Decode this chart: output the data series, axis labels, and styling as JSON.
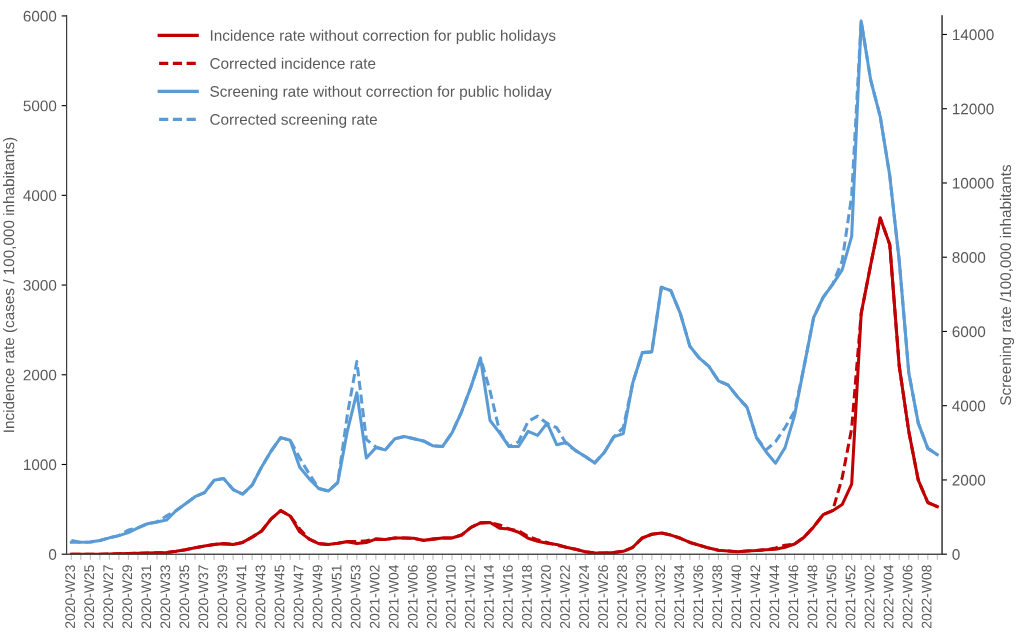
{
  "chart_data": {
    "type": "line",
    "categories": [
      "2020-W23",
      null,
      "2020-W25",
      null,
      "2020-W27",
      null,
      "2020-W29",
      null,
      "2020-W31",
      null,
      "2020-W33",
      null,
      "2020-W35",
      null,
      "2020-W37",
      null,
      "2020-W39",
      null,
      "2020-W41",
      null,
      "2020-W43",
      null,
      "2020-W45",
      null,
      "2020-W47",
      null,
      "2020-W49",
      null,
      "2020-W51",
      null,
      "2020-W53",
      null,
      "2021-W02",
      null,
      "2021-W04",
      null,
      "2021-W06",
      null,
      "2021-W08",
      null,
      "2021-W10",
      null,
      "2021-W12",
      null,
      "2021-W14",
      null,
      "2021-W16",
      null,
      "2021-W18",
      null,
      "2021-W20",
      null,
      "2021-W22",
      null,
      "2021-W24",
      null,
      "2021-W26",
      null,
      "2021-W28",
      null,
      "2021-W30",
      null,
      "2021-W32",
      null,
      "2021-W34",
      null,
      "2021-W36",
      null,
      "2021-W38",
      null,
      "2021-W40",
      null,
      "2021-W42",
      null,
      "2021-W44",
      null,
      "2021-W46",
      null,
      "2021-W48",
      null,
      "2021-W50",
      null,
      "2021-W52",
      null,
      "2022-W02",
      null,
      "2022-W04",
      null,
      "2022-W06",
      null,
      "2022-W08",
      null
    ],
    "ylabel": "Incidence rate (cases / 100,000 inhabitants)",
    "y2label": "Screening rate /100,000 inhabitants",
    "ylim": [
      0,
      6000
    ],
    "yticks": [
      0,
      1000,
      2000,
      3000,
      4000,
      5000,
      6000
    ],
    "y2lim": [
      0,
      14500
    ],
    "y2ticks": [
      0,
      2000,
      4000,
      6000,
      8000,
      10000,
      12000,
      14000
    ],
    "legend": "top left",
    "grid": false,
    "marker": "none",
    "series": [
      {
        "name": "Incidence rate without correction for public holidays",
        "color": "#c00000",
        "line_style": "solid",
        "values": [
          0,
          0,
          0,
          0,
          2,
          5,
          8,
          10,
          12,
          15,
          18,
          32,
          50,
          73,
          91,
          109,
          118,
          109,
          131,
          190,
          258,
          394,
          485,
          426,
          249,
          168,
          118,
          109,
          122,
          140,
          118,
          131,
          168,
          163,
          181,
          181,
          177,
          154,
          168,
          181,
          181,
          213,
          299,
          349,
          353,
          290,
          281,
          245,
          177,
          145,
          122,
          109,
          77,
          54,
          27,
          14,
          14,
          18,
          32,
          77,
          181,
          222,
          236,
          213,
          177,
          131,
          100,
          68,
          45,
          36,
          27,
          36,
          41,
          50,
          54,
          77,
          113,
          190,
          304,
          440,
          485,
          553,
          780,
          2683,
          3227,
          3748,
          3453,
          2094,
          1369,
          825,
          576,
          530
        ]
      },
      {
        "name": "Corrected incidence rate",
        "color": "#c00000",
        "line_style": "dashed",
        "values": [
          0,
          0,
          0,
          0,
          2,
          5,
          8,
          10,
          12,
          15,
          18,
          32,
          50,
          73,
          91,
          109,
          118,
          109,
          131,
          190,
          258,
          394,
          485,
          426,
          281,
          168,
          118,
          109,
          122,
          140,
          140,
          150,
          168,
          163,
          181,
          181,
          177,
          154,
          168,
          181,
          181,
          213,
          299,
          349,
          353,
          326,
          281,
          260,
          199,
          160,
          130,
          100,
          77,
          54,
          27,
          14,
          14,
          18,
          32,
          77,
          181,
          222,
          236,
          213,
          177,
          131,
          100,
          68,
          45,
          36,
          27,
          36,
          41,
          50,
          70,
          100,
          113,
          190,
          304,
          440,
          485,
          850,
          1400,
          2683,
          3227,
          3748,
          3453,
          2094,
          1369,
          825,
          576,
          530
        ]
      },
      {
        "name": "Screening rate without correction for public holiday",
        "color": "#5b9bd5",
        "line_style": "solid",
        "axis": "y2",
        "values": [
          320,
          320,
          330,
          370,
          440,
          500,
          580,
          710,
          820,
          870,
          920,
          1170,
          1360,
          1550,
          1660,
          1990,
          2040,
          1740,
          1620,
          1860,
          2350,
          2780,
          3140,
          3070,
          2340,
          2030,
          1770,
          1700,
          1930,
          3310,
          4350,
          2590,
          2870,
          2810,
          3110,
          3170,
          3110,
          3050,
          2920,
          2900,
          3270,
          3830,
          4510,
          5280,
          3600,
          3270,
          2900,
          2900,
          3310,
          3200,
          3530,
          2950,
          3010,
          2790,
          2630,
          2460,
          2740,
          3160,
          3250,
          4620,
          5430,
          5450,
          7190,
          7100,
          6480,
          5600,
          5280,
          5060,
          4670,
          4560,
          4240,
          3960,
          3140,
          2760,
          2450,
          2870,
          3740,
          5060,
          6370,
          6920,
          7270,
          7660,
          8560,
          14360,
          12770,
          11790,
          10200,
          7900,
          4890,
          3530,
          2850,
          2680
        ]
      },
      {
        "name": "Corrected screening rate",
        "color": "#5b9bd5",
        "line_style": "dashed",
        "axis": "y2",
        "values": [
          370,
          320,
          330,
          370,
          440,
          500,
          650,
          710,
          820,
          870,
          1030,
          1170,
          1360,
          1550,
          1660,
          1990,
          2040,
          1740,
          1620,
          1860,
          2350,
          2780,
          3140,
          3070,
          2590,
          2160,
          1770,
          1700,
          1930,
          3740,
          5190,
          3090,
          2890,
          2810,
          3110,
          3170,
          3110,
          3050,
          2920,
          2900,
          3270,
          3830,
          4510,
          5280,
          4400,
          3310,
          2900,
          3030,
          3580,
          3720,
          3520,
          3410,
          2980,
          2790,
          2630,
          2460,
          2740,
          3160,
          3410,
          4620,
          5430,
          5450,
          7190,
          7100,
          6480,
          5600,
          5280,
          5060,
          4670,
          4560,
          4240,
          3960,
          3140,
          2810,
          3030,
          3410,
          3850,
          5060,
          6370,
          6920,
          7270,
          7900,
          9650,
          14360,
          12770,
          11790,
          10200,
          7900,
          4890,
          3530,
          2850,
          2680
        ]
      }
    ]
  }
}
